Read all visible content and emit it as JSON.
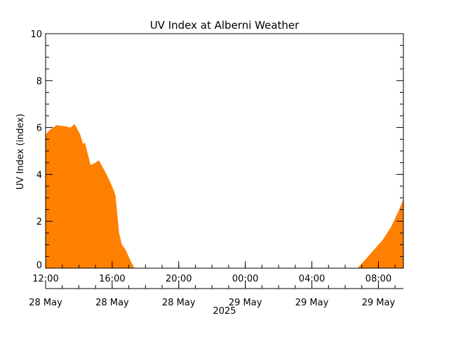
{
  "chart_data": {
    "type": "area",
    "title": "UV Index at Alberni Weather",
    "ylabel": "UV Index (index)",
    "xlabel": "2025",
    "ylim": [
      0,
      10
    ],
    "yticks": [
      "0",
      "2",
      "4",
      "6",
      "8",
      "10"
    ],
    "xlim": [
      "2025-05-28 12:00",
      "2025-05-29 09:30"
    ],
    "xticks": [
      {
        "time": "12:00",
        "date": "28 May",
        "at": "2025-05-28 12:00"
      },
      {
        "time": "16:00",
        "date": "28 May",
        "at": "2025-05-28 16:00"
      },
      {
        "time": "20:00",
        "date": "28 May",
        "at": "2025-05-28 20:00"
      },
      {
        "time": "00:00",
        "date": "29 May",
        "at": "2025-05-29 00:00"
      },
      {
        "time": "04:00",
        "date": "29 May",
        "at": "2025-05-29 04:00"
      },
      {
        "time": "08:00",
        "date": "29 May",
        "at": "2025-05-29 08:00"
      }
    ],
    "fill_color": "#ff8000",
    "series": [
      {
        "points": [
          [
            "2025-05-28 12:00",
            5.7
          ],
          [
            "2025-05-28 12:15",
            5.9
          ],
          [
            "2025-05-28 12:40",
            6.1
          ],
          [
            "2025-05-28 13:10",
            6.05
          ],
          [
            "2025-05-28 13:30",
            6.0
          ],
          [
            "2025-05-28 13:45",
            6.15
          ],
          [
            "2025-05-28 14:05",
            5.7
          ],
          [
            "2025-05-28 14:15",
            5.3
          ],
          [
            "2025-05-28 14:22",
            5.35
          ],
          [
            "2025-05-28 14:42",
            4.4
          ],
          [
            "2025-05-28 15:00",
            4.5
          ],
          [
            "2025-05-28 15:12",
            4.6
          ],
          [
            "2025-05-28 15:40",
            4.0
          ],
          [
            "2025-05-28 16:05",
            3.35
          ],
          [
            "2025-05-28 16:12",
            3.1
          ],
          [
            "2025-05-28 16:25",
            1.5
          ],
          [
            "2025-05-28 16:35",
            1.0
          ],
          [
            "2025-05-28 16:48",
            0.8
          ],
          [
            "2025-05-28 17:05",
            0.35
          ],
          [
            "2025-05-28 17:20",
            0.0
          ],
          [
            "2025-05-29 06:45",
            0.0
          ],
          [
            "2025-05-29 07:15",
            0.4
          ],
          [
            "2025-05-29 07:45",
            0.8
          ],
          [
            "2025-05-29 08:15",
            1.2
          ],
          [
            "2025-05-29 08:45",
            1.75
          ],
          [
            "2025-05-29 09:15",
            2.5
          ],
          [
            "2025-05-29 09:30",
            2.95
          ]
        ]
      }
    ]
  }
}
